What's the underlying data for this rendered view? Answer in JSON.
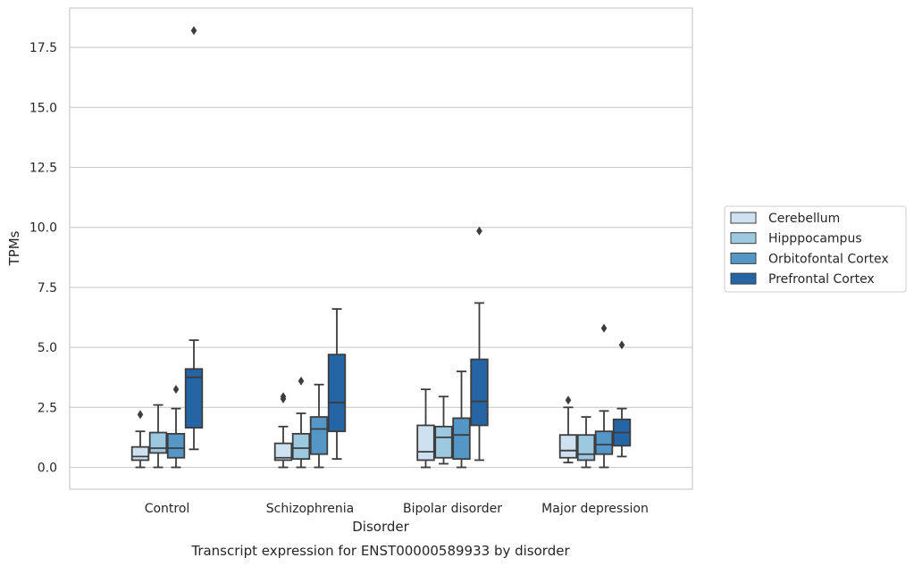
{
  "chart_data": {
    "type": "box",
    "caption": "Transcript expression for ENST00000589933 by disorder",
    "xlabel": "Disorder",
    "ylabel": "TPMs",
    "ylim": [
      -0.9,
      19.1
    ],
    "yticks": [
      0.0,
      2.5,
      5.0,
      7.5,
      10.0,
      12.5,
      15.0,
      17.5
    ],
    "ytick_labels": [
      "0.0",
      "2.5",
      "5.0",
      "7.5",
      "10.0",
      "12.5",
      "15.0",
      "17.5"
    ],
    "grid": true,
    "legend_position": "right",
    "categories": [
      "Control",
      "Schizophrenia",
      "Bipolar disorder",
      "Major depression"
    ],
    "series": [
      {
        "name": "Cerebellum",
        "color": "#cfe1f0",
        "boxes": [
          {
            "whisker_low": 0.0,
            "q1": 0.3,
            "median": 0.45,
            "q3": 0.85,
            "whisker_high": 1.5,
            "outliers": [
              2.2
            ]
          },
          {
            "whisker_low": 0.0,
            "q1": 0.3,
            "median": 0.4,
            "q3": 1.0,
            "whisker_high": 1.7,
            "outliers": [
              2.85,
              2.95
            ]
          },
          {
            "whisker_low": 0.0,
            "q1": 0.3,
            "median": 0.65,
            "q3": 1.75,
            "whisker_high": 3.25,
            "outliers": []
          },
          {
            "whisker_low": 0.2,
            "q1": 0.4,
            "median": 0.7,
            "q3": 1.35,
            "whisker_high": 2.5,
            "outliers": [
              2.8
            ]
          }
        ]
      },
      {
        "name": "Hipppocampus",
        "color": "#9dc9e0",
        "boxes": [
          {
            "whisker_low": 0.0,
            "q1": 0.6,
            "median": 0.8,
            "q3": 1.45,
            "whisker_high": 2.6,
            "outliers": []
          },
          {
            "whisker_low": 0.0,
            "q1": 0.35,
            "median": 0.8,
            "q3": 1.4,
            "whisker_high": 2.25,
            "outliers": [
              3.6
            ]
          },
          {
            "whisker_low": 0.15,
            "q1": 0.4,
            "median": 1.25,
            "q3": 1.7,
            "whisker_high": 2.95,
            "outliers": []
          },
          {
            "whisker_low": 0.0,
            "q1": 0.3,
            "median": 0.55,
            "q3": 1.35,
            "whisker_high": 2.1,
            "outliers": []
          }
        ]
      },
      {
        "name": "Orbitofontal Cortex",
        "color": "#5496c6",
        "boxes": [
          {
            "whisker_low": 0.0,
            "q1": 0.4,
            "median": 0.8,
            "q3": 1.4,
            "whisker_high": 2.45,
            "outliers": [
              3.25
            ]
          },
          {
            "whisker_low": 0.0,
            "q1": 0.55,
            "median": 1.6,
            "q3": 2.1,
            "whisker_high": 3.45,
            "outliers": []
          },
          {
            "whisker_low": 0.0,
            "q1": 0.35,
            "median": 1.35,
            "q3": 2.05,
            "whisker_high": 4.0,
            "outliers": []
          },
          {
            "whisker_low": 0.0,
            "q1": 0.55,
            "median": 0.95,
            "q3": 1.5,
            "whisker_high": 2.35,
            "outliers": [
              5.8
            ]
          }
        ]
      },
      {
        "name": "Prefrontal Cortex",
        "color": "#2565a6",
        "boxes": [
          {
            "whisker_low": 0.75,
            "q1": 1.65,
            "median": 3.75,
            "q3": 4.1,
            "whisker_high": 5.3,
            "outliers": [
              18.2
            ]
          },
          {
            "whisker_low": 0.35,
            "q1": 1.5,
            "median": 2.7,
            "q3": 4.7,
            "whisker_high": 6.6,
            "outliers": []
          },
          {
            "whisker_low": 0.3,
            "q1": 1.75,
            "median": 2.75,
            "q3": 4.5,
            "whisker_high": 6.85,
            "outliers": [
              9.85
            ]
          },
          {
            "whisker_low": 0.45,
            "q1": 0.9,
            "median": 1.45,
            "q3": 2.0,
            "whisker_high": 2.45,
            "outliers": [
              5.1
            ]
          }
        ]
      }
    ]
  }
}
